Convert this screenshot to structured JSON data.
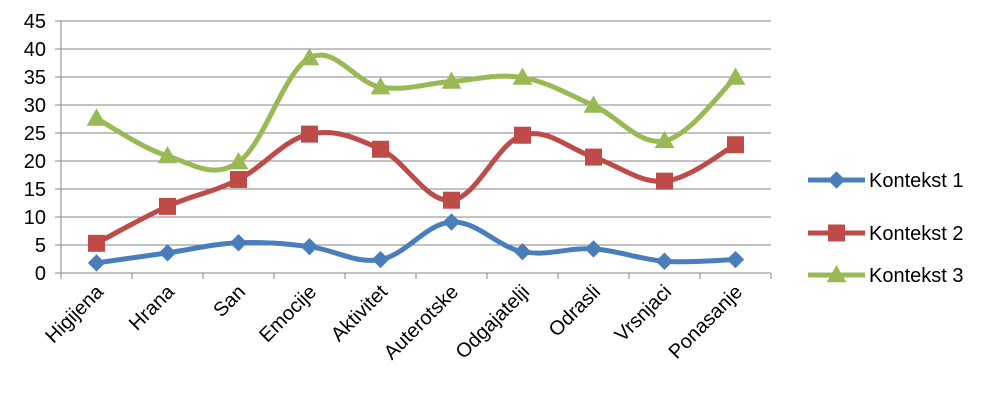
{
  "chart_data": {
    "type": "line",
    "title": "",
    "xlabel": "",
    "ylabel": "",
    "categories": [
      "Higijena",
      "Hrana",
      "San",
      "Emocije",
      "Aktivitet",
      "Auterotske",
      "Odgajatelji",
      "Odrasli",
      "Vrsnjaci",
      "Ponasanje"
    ],
    "ylim": [
      0,
      45
    ],
    "yticks": [
      "0",
      "5",
      "10",
      "15",
      "20",
      "25",
      "30",
      "35",
      "40",
      "45"
    ],
    "grid": true,
    "smooth": true,
    "legend_position": "right",
    "series": [
      {
        "name": "Kontekst 1",
        "color": "#4a7ebb",
        "marker": "diamond",
        "values": [
          1.8,
          3.6,
          5.4,
          4.7,
          2.4,
          9.1,
          3.8,
          4.3,
          2.1,
          2.4
        ]
      },
      {
        "name": "Kontekst 2",
        "color": "#be4b48",
        "marker": "square",
        "values": [
          5.3,
          11.9,
          16.7,
          24.8,
          22.1,
          13.0,
          24.6,
          20.7,
          16.4,
          22.9
        ]
      },
      {
        "name": "Kontekst 3",
        "color": "#98b954",
        "marker": "triangle",
        "values": [
          27.6,
          20.9,
          19.8,
          38.4,
          33.2,
          34.2,
          34.9,
          29.9,
          23.6,
          34.9
        ]
      }
    ]
  }
}
